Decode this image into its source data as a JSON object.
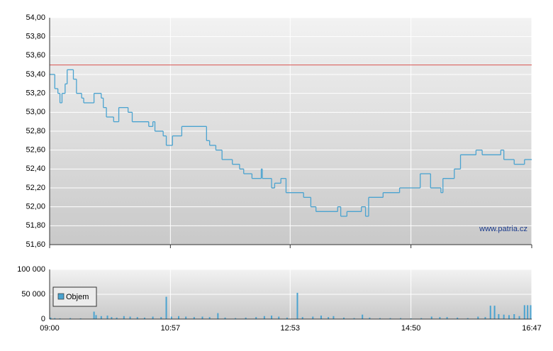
{
  "chart_data": [
    {
      "type": "line",
      "watermark": "www.patria.cz",
      "reference_line": 53.5,
      "reference_color": "#d9534f",
      "ylim": [
        51.6,
        54.0
      ],
      "yticks": [
        {
          "value": 54.0,
          "label": "54,00"
        },
        {
          "value": 53.8,
          "label": "53,80"
        },
        {
          "value": 53.6,
          "label": "53,60"
        },
        {
          "value": 53.4,
          "label": "53,40"
        },
        {
          "value": 53.2,
          "label": "53,20"
        },
        {
          "value": 53.0,
          "label": "53,00"
        },
        {
          "value": 52.8,
          "label": "52,80"
        },
        {
          "value": 52.6,
          "label": "52,60"
        },
        {
          "value": 52.4,
          "label": "52,40"
        },
        {
          "value": 52.2,
          "label": "52,20"
        },
        {
          "value": 52.0,
          "label": "52,00"
        },
        {
          "value": 51.8,
          "label": "51,80"
        },
        {
          "value": 51.6,
          "label": "51,60"
        }
      ],
      "xlim": [
        540,
        1007
      ],
      "grid": true,
      "x": [
        540,
        545,
        548,
        550,
        552,
        555,
        557,
        563,
        566,
        571,
        573,
        583,
        590,
        592,
        595,
        602,
        607,
        616,
        620,
        636,
        640,
        642,
        650,
        653,
        659,
        668,
        692,
        695,
        701,
        707,
        717,
        724,
        728,
        736,
        745,
        746,
        755,
        758,
        764,
        769,
        786,
        793,
        798,
        819,
        822,
        828,
        842,
        846,
        849,
        863,
        879,
        899,
        909,
        919,
        921,
        932,
        938,
        953,
        959,
        977,
        980,
        990,
        1000
      ],
      "series": [
        {
          "color": "#4aa3d0",
          "values": [
            53.4,
            53.25,
            53.2,
            53.1,
            53.2,
            53.3,
            53.45,
            53.35,
            53.2,
            53.15,
            53.1,
            53.2,
            53.15,
            53.05,
            52.95,
            52.9,
            53.05,
            53.0,
            52.9,
            52.85,
            52.9,
            52.8,
            52.75,
            52.65,
            52.75,
            52.85,
            52.7,
            52.65,
            52.6,
            52.5,
            52.45,
            52.4,
            52.35,
            52.3,
            52.4,
            52.3,
            52.2,
            52.25,
            52.3,
            52.15,
            52.1,
            52.0,
            51.95,
            52.0,
            51.9,
            51.95,
            52.0,
            51.9,
            52.1,
            52.15,
            52.2,
            52.35,
            52.2,
            52.15,
            52.3,
            52.4,
            52.55,
            52.6,
            52.55,
            52.6,
            52.5,
            52.45,
            52.5
          ]
        }
      ]
    },
    {
      "type": "bar",
      "ylim": [
        0,
        100000
      ],
      "yticks": [
        {
          "value": 100000,
          "label": "100 000"
        },
        {
          "value": 50000,
          "label": "50 000"
        },
        0
      ],
      "xlim": [
        540,
        1007
      ],
      "xticks": [
        {
          "value": 540,
          "label": "09:00"
        },
        {
          "value": 657,
          "label": "10:57"
        },
        {
          "value": 773,
          "label": "12:53"
        },
        {
          "value": 890,
          "label": "14:50"
        },
        {
          "value": 1007,
          "label": "16:47"
        }
      ],
      "legend": "bottom-left",
      "x": [
        541,
        545,
        550,
        560,
        570,
        583,
        585,
        590,
        596,
        600,
        605,
        612,
        618,
        625,
        632,
        640,
        648,
        653,
        658,
        665,
        672,
        680,
        688,
        695,
        703,
        710,
        720,
        730,
        740,
        748,
        755,
        762,
        770,
        780,
        785,
        795,
        803,
        810,
        815,
        825,
        835,
        843,
        850,
        860,
        870,
        880,
        890,
        900,
        910,
        918,
        925,
        935,
        945,
        955,
        962,
        967,
        971,
        975,
        980,
        985,
        990,
        995,
        1000,
        1003,
        1006
      ],
      "series": [
        {
          "name": "Objem",
          "color": "#4aa3d0",
          "values": [
            3000,
            2000,
            1500,
            2000,
            1500,
            15000,
            8000,
            6000,
            7000,
            4000,
            3000,
            6000,
            5000,
            4000,
            3000,
            5000,
            4000,
            45000,
            5000,
            6000,
            5000,
            4000,
            5000,
            4000,
            12000,
            3000,
            2000,
            3000,
            4000,
            6000,
            7000,
            5000,
            3000,
            53000,
            4000,
            5000,
            7000,
            4000,
            6000,
            3000,
            2000,
            9000,
            3000,
            2000,
            2000,
            2000,
            1500,
            2000,
            5000,
            4000,
            4000,
            3000,
            2000,
            5000,
            4000,
            27000,
            27000,
            10000,
            9000,
            8000,
            10000,
            6000,
            28000,
            28000,
            28000
          ]
        }
      ]
    }
  ]
}
